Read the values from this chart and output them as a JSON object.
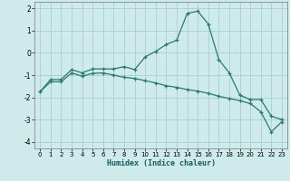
{
  "title": "",
  "xlabel": "Humidex (Indice chaleur)",
  "background_color": "#ceeaea",
  "grid_color": "#aad4d4",
  "line_color": "#2a7a6a",
  "xlim": [
    -0.5,
    23.5
  ],
  "ylim": [
    -4.3,
    2.3
  ],
  "xticks": [
    0,
    1,
    2,
    3,
    4,
    5,
    6,
    7,
    8,
    9,
    10,
    11,
    12,
    13,
    14,
    15,
    16,
    17,
    18,
    19,
    20,
    21,
    22,
    23
  ],
  "yticks": [
    -4,
    -3,
    -2,
    -1,
    0,
    1,
    2
  ],
  "line1_x": [
    0,
    1,
    2,
    3,
    4,
    5,
    6,
    7,
    8,
    9,
    10,
    11,
    12,
    13,
    14,
    15,
    16,
    17,
    18,
    19,
    20,
    21,
    22,
    23
  ],
  "line1_y": [
    -1.75,
    -1.2,
    -1.2,
    -0.75,
    -0.9,
    -0.72,
    -0.72,
    -0.72,
    -0.62,
    -0.75,
    -0.18,
    0.07,
    0.38,
    0.57,
    1.78,
    1.88,
    1.3,
    -0.3,
    -0.9,
    -1.9,
    -2.1,
    -2.1,
    -2.85,
    -3.0
  ],
  "line2_x": [
    0,
    1,
    2,
    3,
    4,
    5,
    6,
    7,
    8,
    9,
    10,
    11,
    12,
    13,
    14,
    15,
    16,
    17,
    18,
    19,
    20,
    21,
    22,
    23
  ],
  "line2_y": [
    -1.75,
    -1.3,
    -1.3,
    -0.9,
    -1.05,
    -0.92,
    -0.9,
    -1.0,
    -1.1,
    -1.15,
    -1.25,
    -1.35,
    -1.48,
    -1.55,
    -1.65,
    -1.72,
    -1.82,
    -1.95,
    -2.05,
    -2.15,
    -2.28,
    -2.65,
    -3.55,
    -3.1
  ]
}
